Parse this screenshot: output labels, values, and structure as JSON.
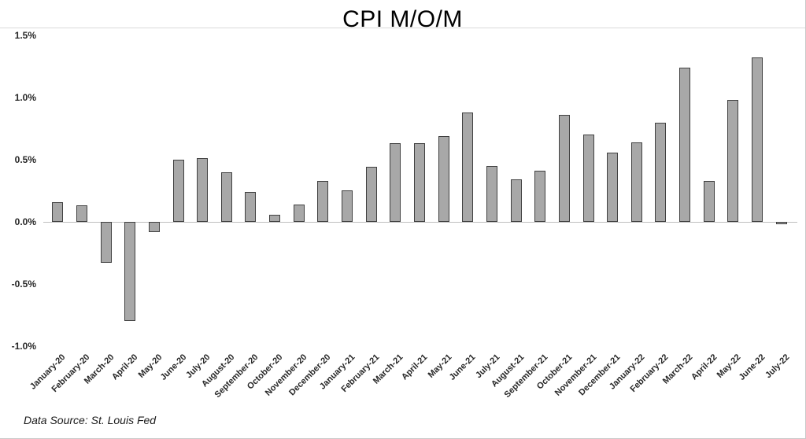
{
  "source_note": "Data Source: St. Louis Fed",
  "chart_data": {
    "type": "bar",
    "title": "CPI M/O/M",
    "categories": [
      "January-20",
      "February-20",
      "March-20",
      "April-20",
      "May-20",
      "June-20",
      "July-20",
      "August-20",
      "September-20",
      "October-20",
      "November-20",
      "December-20",
      "January-21",
      "February-21",
      "March-21",
      "April-21",
      "May-21",
      "June-21",
      "July-21",
      "August-21",
      "September-21",
      "October-21",
      "November-21",
      "December-21",
      "January-22",
      "February-22",
      "March-22",
      "April-22",
      "May-22",
      "June-22",
      "July-22"
    ],
    "values": [
      0.16,
      0.13,
      -0.33,
      -0.8,
      -0.08,
      0.5,
      0.51,
      0.4,
      0.24,
      0.06,
      0.14,
      0.33,
      0.25,
      0.44,
      0.63,
      0.63,
      0.69,
      0.88,
      0.45,
      0.34,
      0.41,
      0.86,
      0.7,
      0.56,
      0.64,
      0.8,
      1.24,
      0.33,
      0.98,
      1.32,
      -0.02
    ],
    "xlabel": "",
    "ylabel": "",
    "ylim": [
      -1.0,
      1.5
    ],
    "yticks": [
      1.5,
      1.0,
      0.5,
      0.0,
      -0.5,
      -1.0
    ],
    "ytick_labels": [
      "1.5%",
      "1.0%",
      "0.5%",
      "0.0%",
      "-0.5%",
      "-1.0%"
    ],
    "grid": false,
    "legend": false,
    "bar_fill": "#a8a8a8",
    "bar_border": "#404040",
    "axis_line_color": "#bfbfbf"
  }
}
